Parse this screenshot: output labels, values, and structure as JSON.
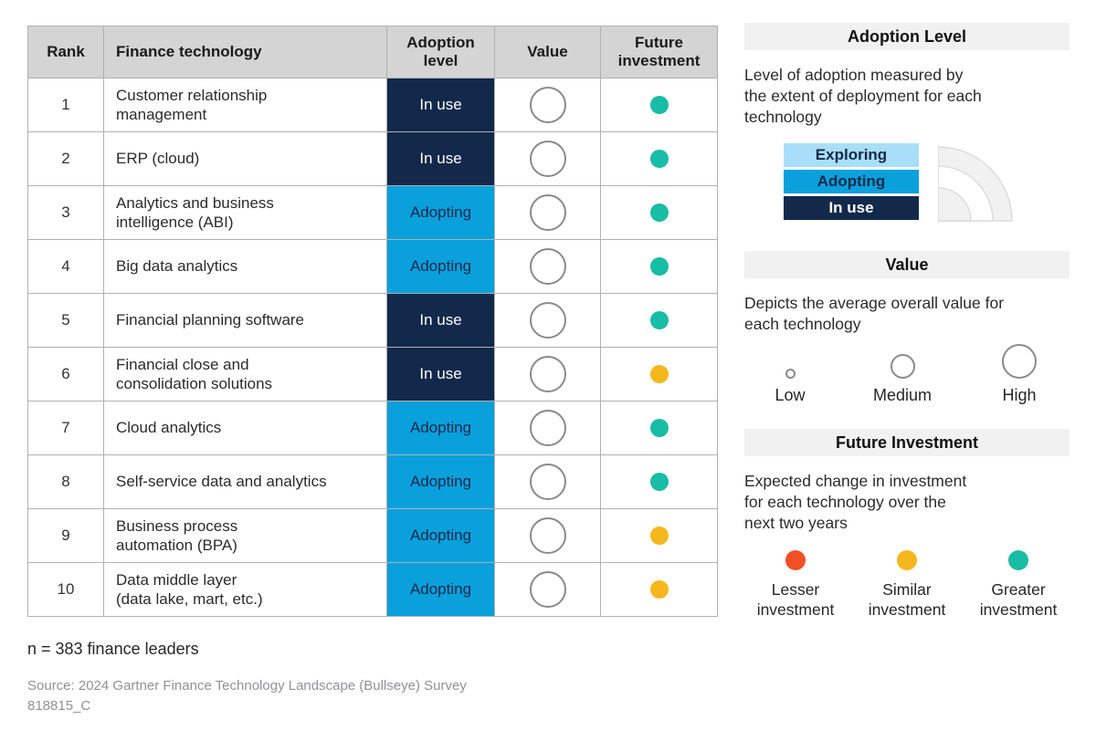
{
  "colors": {
    "navy": "#13294b",
    "blue": "#0aa0dc",
    "light_blue": "#a9def9",
    "teal": "#19bca4",
    "yellow": "#f6b71c",
    "orange": "#f14f24",
    "header_gray": "#d4d4d4",
    "panel_gray": "#f1f1f1"
  },
  "table": {
    "headers": [
      "Rank",
      "Finance technology",
      "Adoption level",
      "Value",
      "Future investment"
    ],
    "rows": [
      {
        "rank": "1",
        "technology_lines": [
          "Customer relationship",
          "management"
        ],
        "adoption": "In use",
        "value": "High",
        "investment": "Greater"
      },
      {
        "rank": "2",
        "technology_lines": [
          "ERP (cloud)"
        ],
        "adoption": "In use",
        "value": "High",
        "investment": "Greater"
      },
      {
        "rank": "3",
        "technology_lines": [
          "Analytics and business",
          "intelligence (ABI)"
        ],
        "adoption": "Adopting",
        "value": "High",
        "investment": "Greater"
      },
      {
        "rank": "4",
        "technology_lines": [
          "Big data analytics"
        ],
        "adoption": "Adopting",
        "value": "High",
        "investment": "Greater"
      },
      {
        "rank": "5",
        "technology_lines": [
          "Financial planning software"
        ],
        "adoption": "In use",
        "value": "High",
        "investment": "Greater"
      },
      {
        "rank": "6",
        "technology_lines": [
          "Financial close and",
          "consolidation solutions"
        ],
        "adoption": "In use",
        "value": "High",
        "investment": "Similar"
      },
      {
        "rank": "7",
        "technology_lines": [
          "Cloud analytics"
        ],
        "adoption": "Adopting",
        "value": "High",
        "investment": "Greater"
      },
      {
        "rank": "8",
        "technology_lines": [
          "Self-service data and analytics"
        ],
        "adoption": "Adopting",
        "value": "High",
        "investment": "Greater"
      },
      {
        "rank": "9",
        "technology_lines": [
          "Business process",
          "automation (BPA)"
        ],
        "adoption": "Adopting",
        "value": "High",
        "investment": "Similar"
      },
      {
        "rank": "10",
        "technology_lines": [
          "Data middle layer",
          "(data lake, mart, etc.)"
        ],
        "adoption": "Adopting",
        "value": "High",
        "investment": "Similar"
      }
    ]
  },
  "legend": {
    "adoption": {
      "title": "Adoption Level",
      "description_lines": [
        "Level of adoption measured by",
        "the extent of deployment for each",
        "technology"
      ],
      "levels": [
        {
          "label": "Exploring",
          "color": "#a9def9",
          "text_color": "#13294b"
        },
        {
          "label": "Adopting",
          "color": "#0aa0dc",
          "text_color": "#13294b"
        },
        {
          "label": "In use",
          "color": "#13294b",
          "text_color": "#ffffff"
        }
      ]
    },
    "value": {
      "title": "Value",
      "description_lines": [
        "Depicts the average overall value for",
        "each technology"
      ],
      "sizes": [
        {
          "label": "Low"
        },
        {
          "label": "Medium"
        },
        {
          "label": "High"
        }
      ]
    },
    "investment": {
      "title": "Future Investment",
      "description_lines": [
        "Expected change in investment",
        "for each technology over the",
        "next two years"
      ],
      "items": [
        {
          "label": "Lesser investment",
          "color": "#f14f24"
        },
        {
          "label": "Similar investment",
          "color": "#f6b71c"
        },
        {
          "label": "Greater investment",
          "color": "#19bca4"
        }
      ]
    }
  },
  "footer": {
    "sample": "n = 383 finance leaders",
    "source": "Source: 2024 Gartner Finance Technology Landscape (Bullseye) Survey",
    "id": "818815_C"
  },
  "chart_data": {
    "type": "table",
    "title": "Top Finance Technologies (Gartner Bullseye)",
    "columns": [
      "Rank",
      "Finance technology",
      "Adoption level",
      "Value",
      "Future investment"
    ],
    "rows": [
      [
        1,
        "Customer relationship management",
        "In use",
        "High",
        "Greater investment"
      ],
      [
        2,
        "ERP (cloud)",
        "In use",
        "High",
        "Greater investment"
      ],
      [
        3,
        "Analytics and business intelligence (ABI)",
        "Adopting",
        "High",
        "Greater investment"
      ],
      [
        4,
        "Big data analytics",
        "Adopting",
        "High",
        "Greater investment"
      ],
      [
        5,
        "Financial planning software",
        "In use",
        "High",
        "Greater investment"
      ],
      [
        6,
        "Financial close and consolidation solutions",
        "In use",
        "High",
        "Similar investment"
      ],
      [
        7,
        "Cloud analytics",
        "Adopting",
        "High",
        "Greater investment"
      ],
      [
        8,
        "Self-service data and analytics",
        "Adopting",
        "High",
        "Greater investment"
      ],
      [
        9,
        "Business process automation (BPA)",
        "Adopting",
        "High",
        "Similar investment"
      ],
      [
        10,
        "Data middle layer (data lake, mart, etc.)",
        "Adopting",
        "High",
        "Similar investment"
      ]
    ],
    "sample_note": "n = 383 finance leaders",
    "source": "Source: 2024 Gartner Finance Technology Landscape (Bullseye) Survey"
  }
}
